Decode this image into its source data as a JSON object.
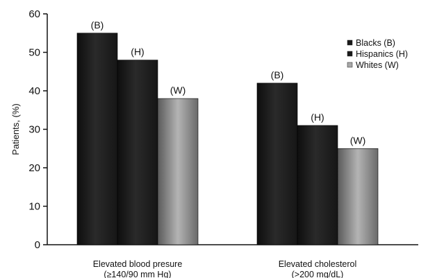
{
  "chart_data": {
    "type": "bar",
    "ylabel": "Patients, (%)",
    "ylim": [
      0,
      60
    ],
    "yticks": [
      0,
      10,
      20,
      30,
      40,
      50,
      60
    ],
    "categories": [
      {
        "line1": "Elevated blood presure",
        "line2": "(≥140/90 mm Hg)"
      },
      {
        "line1": "Elevated cholesterol",
        "line2": "(>200 mg/dL)"
      }
    ],
    "series": [
      {
        "name": "Blacks (B)",
        "label": "(B)",
        "color": "#1e1e1e",
        "values": [
          55,
          42
        ]
      },
      {
        "name": "Hispanics (H)",
        "label": "(H)",
        "color": "#1e1e1e",
        "values": [
          48,
          31
        ]
      },
      {
        "name": "Whites (W)",
        "label": "(W)",
        "color": "#9a9a9a",
        "values": [
          38,
          25
        ]
      }
    ],
    "legend_position": "top-right",
    "grid": false
  }
}
